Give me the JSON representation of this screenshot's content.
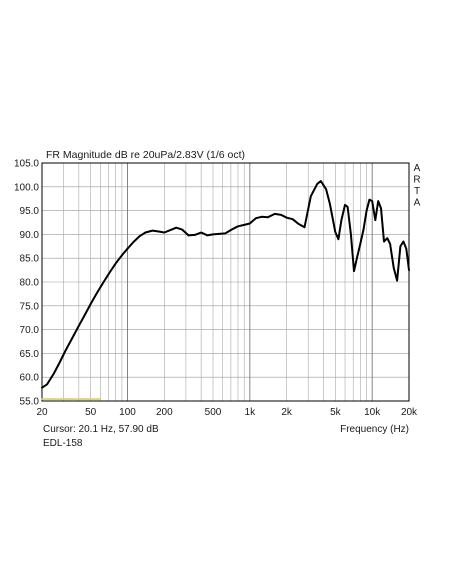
{
  "chart_data": {
    "type": "line",
    "title": "FR Magnitude dB re 20uPa/2.83V (1/6 oct)",
    "xlabel": "Frequency (Hz)",
    "ylabel": "",
    "x_scale": "log",
    "xlim": [
      20,
      20000
    ],
    "ylim": [
      55,
      105
    ],
    "grid": true,
    "y_ticks": [
      "55.0",
      "60.0",
      "65.0",
      "70.0",
      "75.0",
      "80.0",
      "85.0",
      "90.0",
      "95.0",
      "100.0",
      "105.0"
    ],
    "x_tick_values": [
      20,
      50,
      100,
      200,
      500,
      1000,
      2000,
      5000,
      10000,
      20000
    ],
    "x_tick_labels": [
      "20",
      "50",
      "100",
      "200",
      "500",
      "1k",
      "2k",
      "5k",
      "10k",
      "20k"
    ],
    "watermark": "ARTA",
    "cursor_text": "Cursor: 20.1 Hz, 57.90 dB",
    "model_label": "EDL-158",
    "series": [
      {
        "color": "#000000",
        "x": [
          20,
          22,
          25,
          28,
          31,
          35,
          40,
          45,
          50,
          56,
          63,
          71,
          80,
          90,
          100,
          112,
          125,
          140,
          160,
          180,
          200,
          224,
          250,
          280,
          315,
          355,
          400,
          450,
          500,
          560,
          630,
          710,
          800,
          900,
          1000,
          1120,
          1250,
          1400,
          1600,
          1800,
          2000,
          2240,
          2500,
          2800,
          3150,
          3550,
          3800,
          4200,
          4500,
          5000,
          5300,
          5600,
          6000,
          6300,
          6700,
          7100,
          7500,
          8000,
          8500,
          9000,
          9500,
          10000,
          10600,
          11200,
          11800,
          12500,
          13300,
          14000,
          15000,
          16000,
          17000,
          18000,
          19000,
          20000
        ],
        "y": [
          57.8,
          58.5,
          60.8,
          63.2,
          65.5,
          68.0,
          70.8,
          73.2,
          75.4,
          77.6,
          79.8,
          81.9,
          83.9,
          85.6,
          87.0,
          88.4,
          89.6,
          90.4,
          90.8,
          90.6,
          90.4,
          90.9,
          91.4,
          91.0,
          89.8,
          89.9,
          90.4,
          89.8,
          90.0,
          90.1,
          90.2,
          91.0,
          91.7,
          92.0,
          92.3,
          93.4,
          93.7,
          93.6,
          94.3,
          94.1,
          93.5,
          93.2,
          92.2,
          91.5,
          98.0,
          100.6,
          101.2,
          99.5,
          96.5,
          90.5,
          89.0,
          93.0,
          96.2,
          95.8,
          90.0,
          82.3,
          85.0,
          88.0,
          91.0,
          95.0,
          97.3,
          97.0,
          93.0,
          97.0,
          95.5,
          88.5,
          89.2,
          88.0,
          83.0,
          80.3,
          87.5,
          88.5,
          87.0,
          82.5
        ]
      },
      {
        "color": "#d9cf60",
        "x": [
          20,
          60
        ],
        "y": [
          55.4,
          55.4
        ]
      }
    ]
  }
}
